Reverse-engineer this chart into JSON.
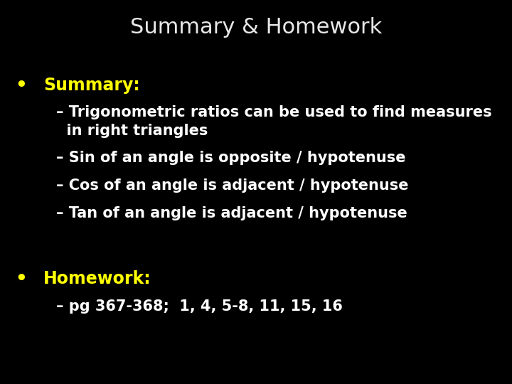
{
  "background_color": "#000000",
  "title": "Summary & Homework",
  "title_color": "#e8e8e8",
  "title_fontsize": 22,
  "title_bold": false,
  "bullet_color": "#ffff00",
  "bullet_fontsize": 17,
  "sub_color": "#ffffff",
  "sub_fontsize": 15,
  "sub_bold": true,
  "fig_width": 7.2,
  "fig_height": 5.4,
  "dpi": 100,
  "bullets": [
    {
      "label": "Summary:",
      "color": "#ffff00",
      "sub_items": [
        "Trigonometric ratios can be used to find measures\n  in right triangles",
        "Sin of an angle is opposite / hypotenuse",
        "Cos of an angle is adjacent / hypotenuse",
        "Tan of an angle is adjacent / hypotenuse"
      ]
    },
    {
      "label": "Homework:",
      "color": "#ffff00",
      "sub_items": [
        "pg 367-368;  1, 4, 5-8, 11, 15, 16"
      ]
    }
  ]
}
